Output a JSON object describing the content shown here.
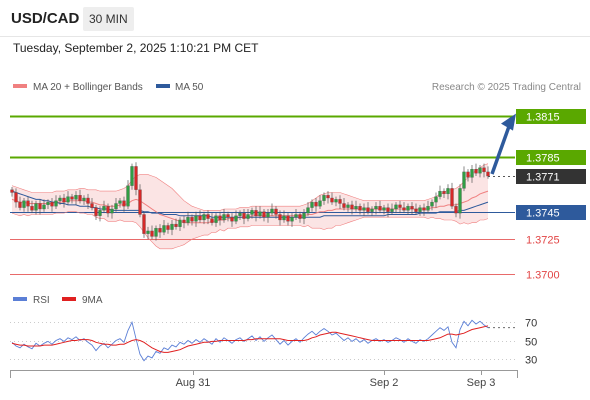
{
  "header": {
    "pair": "USD/CAD",
    "timeframe": "30 MIN"
  },
  "datetime": "Tuesday, September 2, 2025 1:10:21 PM CET",
  "legend": {
    "bollinger": {
      "label": "MA 20 + Bollinger Bands",
      "color": "#f08080"
    },
    "ma50": {
      "label": "MA 50",
      "color": "#2e5a9c"
    }
  },
  "copyright": "Research © 2025 Trading Central",
  "colors": {
    "resistance": "#5aa800",
    "current": "#333333",
    "pivot": "#2e5a9c",
    "support": "#e24545",
    "arrow": "#2e5a9c"
  },
  "chart_data": [
    {
      "type": "candlestick",
      "ylim": [
        1.3688,
        1.383
      ],
      "x_ticks": [
        "Aug 31",
        "Sep 2",
        "Sep 3"
      ],
      "levels": [
        {
          "value": 1.3815,
          "label": "1.3815",
          "kind": "resistance"
        },
        {
          "value": 1.3785,
          "label": "1.3785",
          "kind": "resistance"
        },
        {
          "value": 1.3771,
          "label": "1.3771",
          "kind": "current"
        },
        {
          "value": 1.3745,
          "label": "1.3745",
          "kind": "pivot"
        },
        {
          "value": 1.3725,
          "label": "1.3725",
          "kind": "support"
        },
        {
          "value": 1.37,
          "label": "1.3700",
          "kind": "support"
        }
      ],
      "close": [
        1.3759,
        1.3752,
        1.3748,
        1.3753,
        1.3749,
        1.3746,
        1.3751,
        1.3747,
        1.375,
        1.3752,
        1.3749,
        1.3753,
        1.3755,
        1.3752,
        1.3756,
        1.3754,
        1.3757,
        1.3753,
        1.3755,
        1.3751,
        1.3748,
        1.3742,
        1.3746,
        1.3749,
        1.3744,
        1.3747,
        1.3751,
        1.3753,
        1.3749,
        1.3764,
        1.3778,
        1.3761,
        1.3743,
        1.3729,
        1.3731,
        1.3727,
        1.3733,
        1.373,
        1.3735,
        1.3732,
        1.3736,
        1.3734,
        1.3739,
        1.3737,
        1.3741,
        1.3738,
        1.3742,
        1.3739,
        1.3743,
        1.374,
        1.3737,
        1.3742,
        1.3739,
        1.3743,
        1.3741,
        1.3738,
        1.3742,
        1.3744,
        1.374,
        1.3743,
        1.3746,
        1.3742,
        1.3745,
        1.3741,
        1.3744,
        1.3747,
        1.3743,
        1.3739,
        1.3742,
        1.3738,
        1.3741,
        1.3743,
        1.374,
        1.3744,
        1.3748,
        1.3752,
        1.3749,
        1.3753,
        1.3757,
        1.3755,
        1.3752,
        1.3754,
        1.3751,
        1.3748,
        1.375,
        1.3747,
        1.3749,
        1.3746,
        1.3748,
        1.3745,
        1.3747,
        1.3749,
        1.3746,
        1.3748,
        1.3745,
        1.3747,
        1.375,
        1.3748,
        1.3746,
        1.3749,
        1.3747,
        1.3745,
        1.3748,
        1.3746,
        1.3749,
        1.3752,
        1.3756,
        1.376,
        1.3758,
        1.3762,
        1.3749,
        1.3744,
        1.3762,
        1.3774,
        1.377,
        1.3776,
        1.3773,
        1.3777,
        1.3774,
        1.3771
      ],
      "ma20": [
        1.3754,
        1.3753,
        1.3752,
        1.3752,
        1.3751,
        1.3751,
        1.3751,
        1.3751,
        1.3751,
        1.3751,
        1.3751,
        1.3752,
        1.3752,
        1.3752,
        1.3753,
        1.3753,
        1.3753,
        1.3753,
        1.3753,
        1.3752,
        1.3752,
        1.3751,
        1.375,
        1.375,
        1.3749,
        1.3749,
        1.3749,
        1.375,
        1.375,
        1.3751,
        1.3753,
        1.3754,
        1.3753,
        1.3751,
        1.3749,
        1.3747,
        1.3745,
        1.3743,
        1.3742,
        1.3741,
        1.374,
        1.3739,
        1.3738,
        1.3737,
        1.3737,
        1.3737,
        1.3737,
        1.3737,
        1.3737,
        1.3737,
        1.3738,
        1.3738,
        1.3739,
        1.3739,
        1.374,
        1.374,
        1.374,
        1.3741,
        1.3741,
        1.3741,
        1.3742,
        1.3742,
        1.3742,
        1.3742,
        1.3742,
        1.3742,
        1.3742,
        1.3742,
        1.3742,
        1.3742,
        1.3742,
        1.3742,
        1.3742,
        1.3742,
        1.3743,
        1.3743,
        1.3744,
        1.3745,
        1.3745,
        1.3746,
        1.3746,
        1.3747,
        1.3747,
        1.3747,
        1.3747,
        1.3747,
        1.3747,
        1.3747,
        1.3747,
        1.3747,
        1.3747,
        1.3747,
        1.3747,
        1.3747,
        1.3747,
        1.3747,
        1.3747,
        1.3747,
        1.3747,
        1.3747,
        1.3747,
        1.3747,
        1.3747,
        1.3747,
        1.3747,
        1.3748,
        1.3748,
        1.3749,
        1.3749,
        1.375,
        1.375,
        1.375,
        1.3751,
        1.3752,
        1.3753,
        1.3755,
        1.3756,
        1.3758,
        1.3759,
        1.376
      ],
      "bb_upper": [
        1.3764,
        1.3763,
        1.3762,
        1.3761,
        1.376,
        1.3759,
        1.3759,
        1.3759,
        1.3759,
        1.3759,
        1.3759,
        1.376,
        1.376,
        1.376,
        1.3761,
        1.3761,
        1.3761,
        1.3762,
        1.3762,
        1.3761,
        1.3761,
        1.3761,
        1.376,
        1.376,
        1.376,
        1.376,
        1.376,
        1.3761,
        1.3762,
        1.3764,
        1.3768,
        1.3771,
        1.3772,
        1.3772,
        1.3772,
        1.3771,
        1.377,
        1.3768,
        1.3766,
        1.3764,
        1.3762,
        1.3759,
        1.3756,
        1.3753,
        1.3751,
        1.3749,
        1.3748,
        1.3747,
        1.3746,
        1.3746,
        1.3746,
        1.3746,
        1.3746,
        1.3747,
        1.3747,
        1.3747,
        1.3747,
        1.3748,
        1.3748,
        1.3748,
        1.3749,
        1.3749,
        1.3749,
        1.3749,
        1.3749,
        1.3749,
        1.3749,
        1.3749,
        1.3749,
        1.3749,
        1.3749,
        1.3749,
        1.3749,
        1.375,
        1.3751,
        1.3753,
        1.3755,
        1.3757,
        1.3758,
        1.3759,
        1.3759,
        1.3759,
        1.3759,
        1.3758,
        1.3757,
        1.3756,
        1.3755,
        1.3754,
        1.3753,
        1.3753,
        1.3753,
        1.3753,
        1.3753,
        1.3753,
        1.3753,
        1.3753,
        1.3753,
        1.3753,
        1.3753,
        1.3753,
        1.3753,
        1.3753,
        1.3753,
        1.3753,
        1.3754,
        1.3755,
        1.3756,
        1.3758,
        1.3759,
        1.3761,
        1.3761,
        1.3762,
        1.3764,
        1.3767,
        1.377,
        1.3773,
        1.3775,
        1.3777,
        1.3779,
        1.378
      ],
      "bb_lower": [
        1.3744,
        1.3743,
        1.3742,
        1.3743,
        1.3742,
        1.3743,
        1.3743,
        1.3743,
        1.3743,
        1.3743,
        1.3743,
        1.3744,
        1.3744,
        1.3744,
        1.3745,
        1.3745,
        1.3745,
        1.3744,
        1.3744,
        1.3743,
        1.3743,
        1.3741,
        1.374,
        1.374,
        1.3738,
        1.3738,
        1.3738,
        1.3739,
        1.3738,
        1.3738,
        1.3738,
        1.3737,
        1.3734,
        1.373,
        1.3726,
        1.3723,
        1.372,
        1.3718,
        1.3718,
        1.3718,
        1.3718,
        1.3719,
        1.372,
        1.3721,
        1.3723,
        1.3725,
        1.3726,
        1.3727,
        1.3728,
        1.3728,
        1.373,
        1.373,
        1.3732,
        1.3731,
        1.3733,
        1.3733,
        1.3733,
        1.3734,
        1.3734,
        1.3734,
        1.3735,
        1.3735,
        1.3735,
        1.3735,
        1.3735,
        1.3735,
        1.3735,
        1.3735,
        1.3735,
        1.3735,
        1.3735,
        1.3735,
        1.3735,
        1.3734,
        1.3735,
        1.3733,
        1.3733,
        1.3733,
        1.3732,
        1.3733,
        1.3733,
        1.3735,
        1.3735,
        1.3736,
        1.3737,
        1.3738,
        1.3739,
        1.374,
        1.3741,
        1.3741,
        1.3741,
        1.3741,
        1.3741,
        1.3741,
        1.3741,
        1.3741,
        1.3741,
        1.3741,
        1.3741,
        1.3741,
        1.3741,
        1.3741,
        1.3741,
        1.3741,
        1.374,
        1.3741,
        1.374,
        1.374,
        1.3739,
        1.3739,
        1.3739,
        1.3738,
        1.3736,
        1.3737,
        1.3736,
        1.3737,
        1.3737,
        1.3739,
        1.3739,
        1.374
      ],
      "ma50": [
        1.376,
        1.3759,
        1.3758,
        1.3757,
        1.3756,
        1.3755,
        1.3754,
        1.3754,
        1.3753,
        1.3753,
        1.3752,
        1.3752,
        1.3751,
        1.3751,
        1.375,
        1.375,
        1.375,
        1.3749,
        1.3749,
        1.3749,
        1.3748,
        1.3748,
        1.3747,
        1.3747,
        1.3747,
        1.3746,
        1.3746,
        1.3746,
        1.3746,
        1.3746,
        1.3746,
        1.3746,
        1.3746,
        1.3745,
        1.3745,
        1.3744,
        1.3744,
        1.3744,
        1.3743,
        1.3743,
        1.3743,
        1.3743,
        1.3742,
        1.3742,
        1.3742,
        1.3742,
        1.3742,
        1.3742,
        1.3742,
        1.3742,
        1.3741,
        1.3741,
        1.3741,
        1.3741,
        1.3741,
        1.3741,
        1.3741,
        1.3741,
        1.3741,
        1.3741,
        1.3741,
        1.3741,
        1.3741,
        1.3741,
        1.3741,
        1.3741,
        1.3741,
        1.3741,
        1.3741,
        1.3741,
        1.3741,
        1.3741,
        1.3741,
        1.3741,
        1.3741,
        1.3741,
        1.3741,
        1.3741,
        1.3742,
        1.3742,
        1.3742,
        1.3742,
        1.3742,
        1.3742,
        1.3742,
        1.3742,
        1.3742,
        1.3742,
        1.3742,
        1.3742,
        1.3742,
        1.3742,
        1.3742,
        1.3742,
        1.3743,
        1.3743,
        1.3743,
        1.3743,
        1.3743,
        1.3743,
        1.3743,
        1.3743,
        1.3744,
        1.3744,
        1.3744,
        1.3744,
        1.3744,
        1.3745,
        1.3745,
        1.3745,
        1.3745,
        1.3745,
        1.3746,
        1.3746,
        1.3747,
        1.3748,
        1.3749,
        1.375,
        1.3751,
        1.3752
      ]
    },
    {
      "type": "line",
      "legend": [
        {
          "label": "RSI",
          "color": "#5b7fd6"
        },
        {
          "label": "9MA",
          "color": "#e02020"
        }
      ],
      "ylim": [
        20,
        80
      ],
      "y_ticks": [
        70,
        50,
        30
      ],
      "rsi": [
        48,
        44,
        42,
        46,
        43,
        41,
        47,
        44,
        47,
        49,
        46,
        50,
        52,
        49,
        53,
        51,
        54,
        50,
        52,
        48,
        45,
        39,
        44,
        47,
        42,
        46,
        50,
        52,
        48,
        61,
        70,
        52,
        35,
        28,
        33,
        31,
        38,
        36,
        42,
        40,
        45,
        43,
        48,
        46,
        50,
        47,
        51,
        48,
        52,
        49,
        46,
        52,
        48,
        53,
        50,
        47,
        51,
        53,
        49,
        52,
        55,
        50,
        54,
        49,
        53,
        56,
        51,
        46,
        50,
        45,
        49,
        52,
        48,
        53,
        57,
        60,
        56,
        60,
        63,
        60,
        56,
        58,
        54,
        50,
        53,
        49,
        52,
        48,
        51,
        47,
        50,
        52,
        49,
        51,
        48,
        50,
        53,
        51,
        48,
        52,
        49,
        47,
        51,
        49,
        52,
        56,
        60,
        64,
        61,
        65,
        48,
        42,
        62,
        71,
        66,
        72,
        68,
        71,
        67,
        64
      ],
      "ma9": [
        47,
        46,
        45,
        45,
        44,
        44,
        44,
        44,
        45,
        45,
        45,
        46,
        47,
        48,
        49,
        50,
        50,
        51,
        51,
        51,
        50,
        48,
        47,
        46,
        46,
        45,
        45,
        46,
        46,
        48,
        50,
        51,
        50,
        48,
        45,
        42,
        40,
        38,
        37,
        37,
        38,
        39,
        40,
        42,
        44,
        45,
        46,
        47,
        48,
        48,
        49,
        49,
        50,
        50,
        50,
        50,
        50,
        50,
        50,
        51,
        51,
        52,
        52,
        52,
        52,
        52,
        52,
        52,
        51,
        50,
        50,
        50,
        50,
        50,
        51,
        53,
        54,
        56,
        57,
        58,
        59,
        59,
        58,
        57,
        56,
        55,
        54,
        53,
        52,
        51,
        50,
        50,
        50,
        50,
        50,
        50,
        50,
        50,
        50,
        50,
        50,
        50,
        50,
        50,
        50,
        51,
        52,
        53,
        55,
        57,
        57,
        56,
        57,
        58,
        60,
        62,
        63,
        64,
        65,
        66
      ]
    }
  ]
}
